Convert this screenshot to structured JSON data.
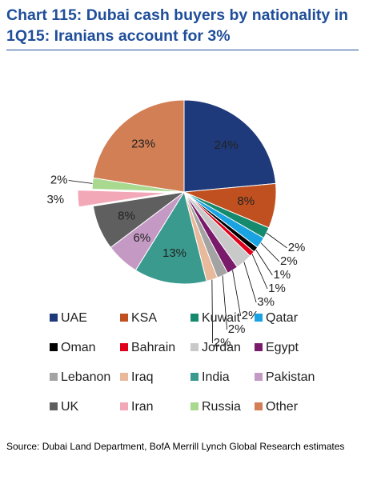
{
  "chart_data": {
    "type": "pie",
    "title": "Chart 115: Dubai cash buyers by nationality in 1Q15: Iranians account for 3%",
    "categories": [
      "UAE",
      "KSA",
      "Kuwait",
      "Qatar",
      "Oman",
      "Bahrain",
      "Jordan",
      "Egypt",
      "Lebanon",
      "Iraq",
      "India",
      "Pakistan",
      "UK",
      "Iran",
      "Russia",
      "Other"
    ],
    "values": [
      24,
      8,
      2,
      2,
      1,
      1,
      3,
      2,
      2,
      2,
      13,
      6,
      8,
      3,
      2,
      23
    ],
    "value_labels": [
      "24%",
      "8%",
      "2%",
      "2%",
      "1%",
      "1%",
      "3%",
      "2%",
      "2%",
      "2%",
      "13%",
      "6%",
      "8%",
      "3%",
      "2%",
      "23%"
    ],
    "colors": [
      "#1f3a7a",
      "#c0501f",
      "#168a6c",
      "#1aa3e2",
      "#000000",
      "#e0001b",
      "#c9c9c9",
      "#7a1a6a",
      "#a3a3a3",
      "#e9b99c",
      "#3a9a8e",
      "#c49ac4",
      "#5f5f5f",
      "#f3a8b8",
      "#a9d98f",
      "#d27f55"
    ],
    "explode": [
      "Iran"
    ],
    "source": "Source: Dubai Land Department, BofA Merrill Lynch Global Research estimates"
  }
}
